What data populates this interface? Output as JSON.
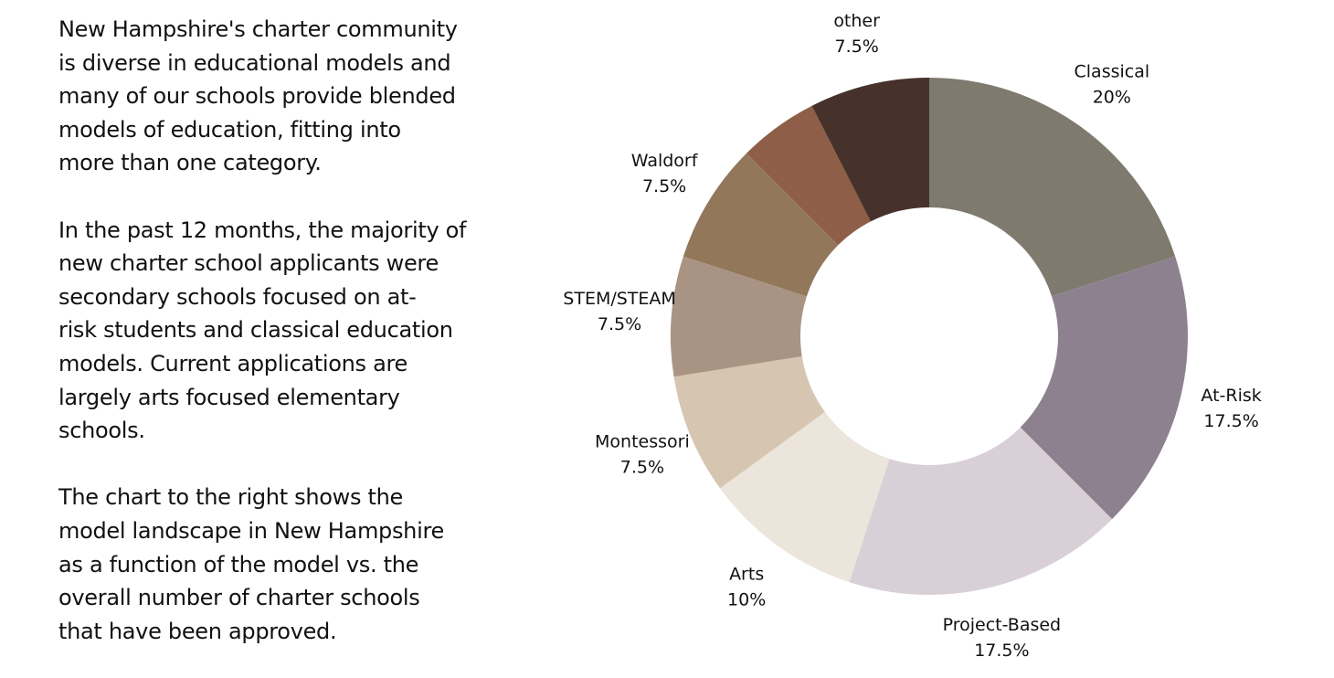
{
  "text": {
    "paragraphs": [
      [
        "New Hampshire's charter community",
        "is diverse in educational models and",
        "many of our schools provide blended",
        "models of education, fitting into",
        "more than one category."
      ],
      [
        "In the past 12 months, the majority of",
        "new charter school applicants were",
        "secondary schools focused on at-",
        "risk students and classical education",
        "models.  Current applications are",
        "largely arts focused elementary",
        "schools."
      ],
      [
        "The chart to the right shows the",
        "model landscape in New Hampshire",
        "as a function of the model vs. the",
        "overall number of charter schools",
        "that have been approved."
      ]
    ]
  },
  "chart_data": {
    "type": "donut",
    "categories": [
      "Classical",
      "At-Risk",
      "Project-Based",
      "Arts",
      "Montessori",
      "STEM/STEAM",
      "Waldorf",
      null,
      "other"
    ],
    "values": [
      20,
      17.5,
      17.5,
      10,
      7.5,
      7.5,
      7.5,
      5,
      7.5
    ],
    "value_labels": [
      "20%",
      "17.5%",
      "17.5%",
      "10%",
      "7.5%",
      "7.5%",
      "7.5%",
      null,
      "7.5%"
    ],
    "colors": [
      "#7f7a6e",
      "#8e818f",
      "#d9d0d7",
      "#ece5dc",
      "#d6c6b1",
      "#a99484",
      "#93775b",
      "#8e5e48",
      "#46322a"
    ]
  }
}
